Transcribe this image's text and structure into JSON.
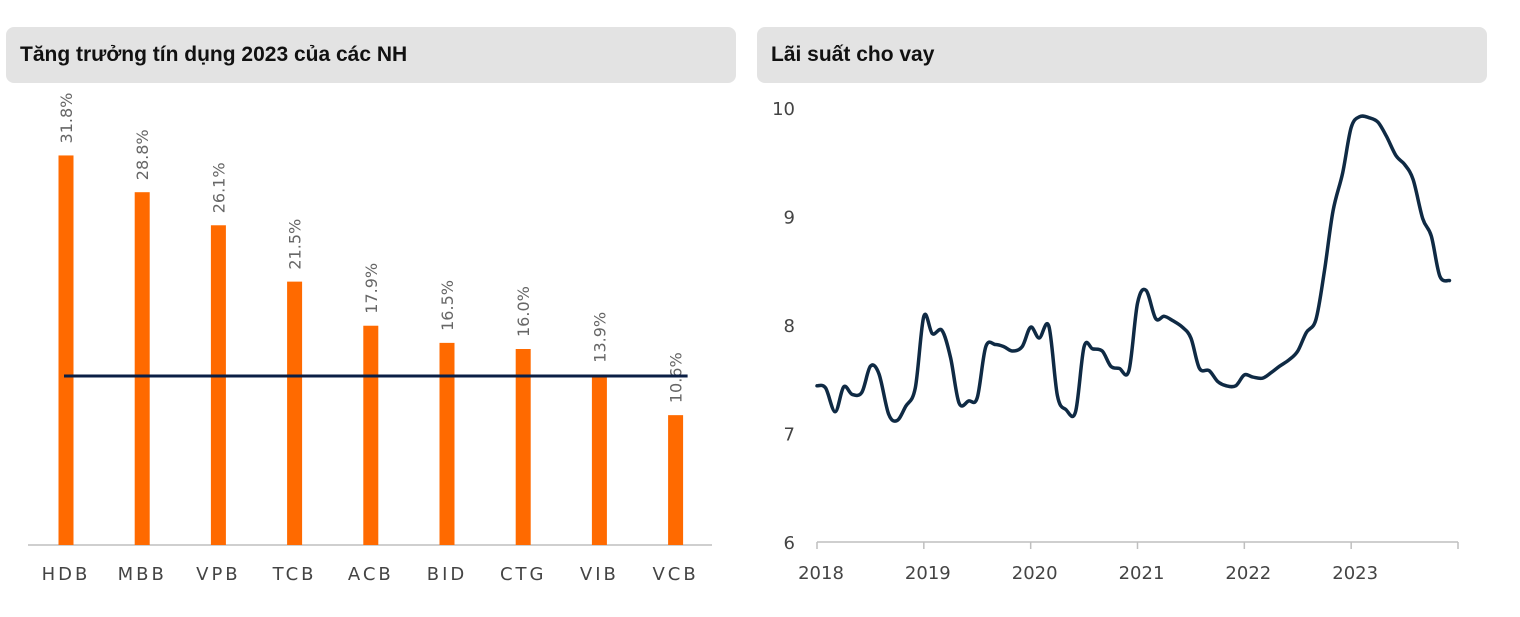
{
  "chart_data": [
    {
      "type": "bar",
      "title": "Tăng trưởng tín dụng 2023 của các NH",
      "categories": [
        "HDB",
        "MBB",
        "VPB",
        "TCB",
        "ACB",
        "BID",
        "CTG",
        "VIB",
        "VCB"
      ],
      "values": [
        31.8,
        28.8,
        26.1,
        21.5,
        17.9,
        16.5,
        16.0,
        13.9,
        10.6
      ],
      "labels": [
        "31.8%",
        "28.8%",
        "26.1%",
        "21.5%",
        "17.9%",
        "16.5%",
        "16.0%",
        "13.9%",
        "10.6%"
      ],
      "reference_line": 13.8,
      "ylim": [
        0,
        36
      ],
      "bar_color": "#ff6a00",
      "line_color": "#0b1f45"
    },
    {
      "type": "line",
      "title": "Lãi suất cho vay",
      "x_ticks": [
        "2018",
        "2019",
        "2020",
        "2021",
        "2022",
        "2023"
      ],
      "y_ticks": [
        "6",
        "7",
        "8",
        "9",
        "10"
      ],
      "ylim": [
        6,
        10
      ],
      "xlim": [
        2018.0,
        2024.0
      ],
      "line_color": "#0f2a44",
      "series": [
        {
          "x": [
            2018.0,
            2018.08,
            2018.17,
            2018.25,
            2018.33,
            2018.42,
            2018.5,
            2018.58,
            2018.67,
            2018.75,
            2018.83,
            2018.92,
            2019.0,
            2019.08,
            2019.17,
            2019.25,
            2019.33,
            2019.42,
            2019.5,
            2019.58,
            2019.67,
            2019.75,
            2019.83,
            2019.92,
            2020.0,
            2020.08,
            2020.17,
            2020.25,
            2020.33,
            2020.42,
            2020.5,
            2020.58,
            2020.67,
            2020.75,
            2020.83,
            2020.92,
            2021.0,
            2021.08,
            2021.17,
            2021.25,
            2021.33,
            2021.42,
            2021.5,
            2021.58,
            2021.67,
            2021.75,
            2021.83,
            2021.92,
            2022.0,
            2022.08,
            2022.17,
            2022.25,
            2022.33,
            2022.42,
            2022.5,
            2022.58,
            2022.67,
            2022.75,
            2022.83,
            2022.92,
            2023.0,
            2023.08,
            2023.17,
            2023.25,
            2023.33,
            2023.42,
            2023.5,
            2023.58,
            2023.67,
            2023.75,
            2023.83,
            2023.92
          ],
          "y": [
            7.44,
            7.42,
            7.2,
            7.43,
            7.36,
            7.38,
            7.62,
            7.55,
            7.18,
            7.12,
            7.25,
            7.42,
            8.08,
            7.92,
            7.95,
            7.7,
            7.28,
            7.3,
            7.33,
            7.8,
            7.82,
            7.8,
            7.76,
            7.8,
            7.98,
            7.88,
            7.99,
            7.35,
            7.22,
            7.2,
            7.8,
            7.78,
            7.76,
            7.62,
            7.6,
            7.58,
            8.2,
            8.32,
            8.06,
            8.08,
            8.04,
            7.98,
            7.88,
            7.6,
            7.58,
            7.48,
            7.44,
            7.44,
            7.54,
            7.52,
            7.51,
            7.56,
            7.62,
            7.68,
            7.76,
            7.93,
            8.05,
            8.5,
            9.05,
            9.4,
            9.82,
            9.92,
            9.91,
            9.87,
            9.74,
            9.56,
            9.48,
            9.34,
            8.98,
            8.82,
            8.45,
            8.41
          ]
        }
      ]
    }
  ]
}
